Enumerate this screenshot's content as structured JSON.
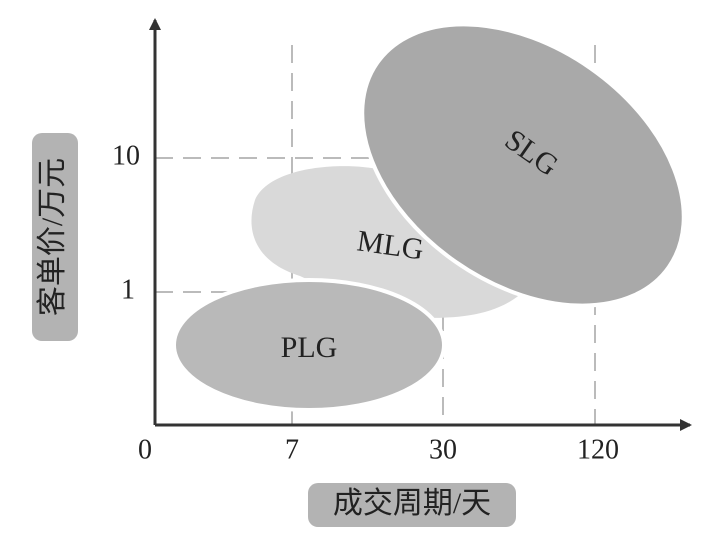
{
  "x_axis": {
    "label": "成交周期/天",
    "ticks": [
      "0",
      "7",
      "30",
      "120"
    ]
  },
  "y_axis": {
    "label": "客单价/万元",
    "ticks": [
      "1",
      "10"
    ]
  },
  "regions": [
    {
      "label": "PLG"
    },
    {
      "label": "MLG"
    },
    {
      "label": "SLG"
    }
  ]
}
